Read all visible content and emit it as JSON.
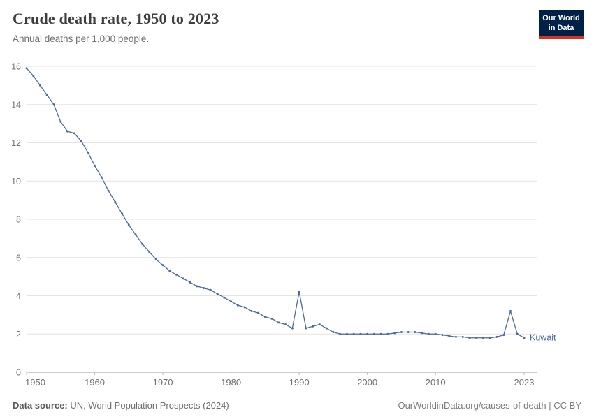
{
  "header": {
    "title": "Crude death rate, 1950 to 2023",
    "subtitle": "Annual deaths per 1,000 people."
  },
  "branding": {
    "logo_line1": "Our World",
    "logo_line2": "in Data",
    "logo_bg": "#002147",
    "logo_accent": "#dc2f22"
  },
  "chart_data": {
    "type": "line",
    "title": "Crude death rate, 1950 to 2023",
    "ylabel": "Annual deaths per 1,000 people",
    "xlim": [
      1950,
      2023
    ],
    "ylim": [
      0,
      16
    ],
    "y_ticks": [
      0,
      2,
      4,
      6,
      8,
      10,
      12,
      14,
      16
    ],
    "x_ticks": [
      1950,
      1960,
      1970,
      1980,
      1990,
      2000,
      2010,
      2023
    ],
    "grid": true,
    "legend": "end-of-line-label",
    "series": [
      {
        "name": "Kuwait",
        "color": "#4c6a9c",
        "x": [
          1950,
          1951,
          1952,
          1953,
          1954,
          1955,
          1956,
          1957,
          1958,
          1959,
          1960,
          1961,
          1962,
          1963,
          1964,
          1965,
          1966,
          1967,
          1968,
          1969,
          1970,
          1971,
          1972,
          1973,
          1974,
          1975,
          1976,
          1977,
          1978,
          1979,
          1980,
          1981,
          1982,
          1983,
          1984,
          1985,
          1986,
          1987,
          1988,
          1989,
          1990,
          1991,
          1992,
          1993,
          1994,
          1995,
          1996,
          1997,
          1998,
          1999,
          2000,
          2001,
          2002,
          2003,
          2004,
          2005,
          2006,
          2007,
          2008,
          2009,
          2010,
          2011,
          2012,
          2013,
          2014,
          2015,
          2016,
          2017,
          2018,
          2019,
          2020,
          2021,
          2022,
          2023
        ],
        "values": [
          15.9,
          15.5,
          15.0,
          14.5,
          14.0,
          13.1,
          12.6,
          12.5,
          12.1,
          11.5,
          10.8,
          10.2,
          9.5,
          8.9,
          8.3,
          7.7,
          7.2,
          6.7,
          6.3,
          5.9,
          5.6,
          5.3,
          5.1,
          4.9,
          4.7,
          4.5,
          4.4,
          4.3,
          4.1,
          3.9,
          3.7,
          3.5,
          3.4,
          3.2,
          3.1,
          2.9,
          2.8,
          2.6,
          2.5,
          2.3,
          4.2,
          2.3,
          2.4,
          2.5,
          2.3,
          2.1,
          2.0,
          2.0,
          2.0,
          2.0,
          2.0,
          2.0,
          2.0,
          2.0,
          2.05,
          2.1,
          2.1,
          2.1,
          2.05,
          2.0,
          2.0,
          1.95,
          1.9,
          1.85,
          1.85,
          1.8,
          1.8,
          1.8,
          1.8,
          1.85,
          1.95,
          3.2,
          2.0,
          1.8
        ]
      }
    ]
  },
  "footer": {
    "source_label": "Data source:",
    "source_text": " UN, World Population Prospects (2024)",
    "credit": "OurWorldinData.org/causes-of-death | CC BY"
  }
}
